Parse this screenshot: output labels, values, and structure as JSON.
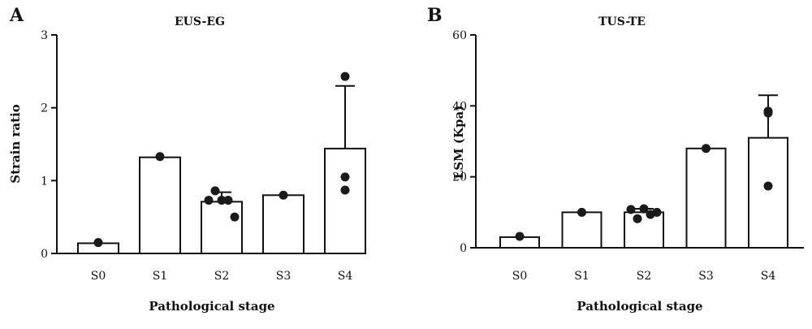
{
  "chart_data": [
    {
      "panel": "A",
      "type": "bar",
      "title": "EUS-EG",
      "xlabel": "Pathological stage",
      "ylabel": "Strain ratio",
      "ylim": [
        0,
        3
      ],
      "yticks": [
        0,
        1,
        2,
        3
      ],
      "categories": [
        "S0",
        "S1",
        "S2",
        "S3",
        "S4"
      ],
      "values": [
        0.14,
        1.32,
        0.71,
        0.8,
        1.44
      ],
      "error_upper": [
        null,
        null,
        0.84,
        null,
        2.3
      ],
      "points": [
        [
          0.15
        ],
        [
          1.33
        ],
        [
          0.73,
          0.86,
          0.73,
          0.73,
          0.5
        ],
        [
          0.8
        ],
        [
          2.43,
          1.05,
          0.87
        ]
      ]
    },
    {
      "panel": "B",
      "type": "bar",
      "title": "TUS-TE",
      "xlabel": "Pathological stage",
      "ylabel": "LSM (Kpa)",
      "ylim": [
        0,
        60
      ],
      "yticks": [
        0,
        20,
        40,
        60
      ],
      "categories": [
        "S0",
        "S1",
        "S2",
        "S3",
        "S4"
      ],
      "values": [
        3.0,
        10.0,
        10.0,
        28.0,
        31.0
      ],
      "error_upper": [
        null,
        null,
        11.0,
        null,
        43.0
      ],
      "points": [
        [
          3.2
        ],
        [
          10.0
        ],
        [
          10.8,
          8.2,
          11.0,
          9.4,
          10.0
        ],
        [
          28.0
        ],
        [
          38.0,
          38.5,
          17.4
        ]
      ]
    }
  ]
}
